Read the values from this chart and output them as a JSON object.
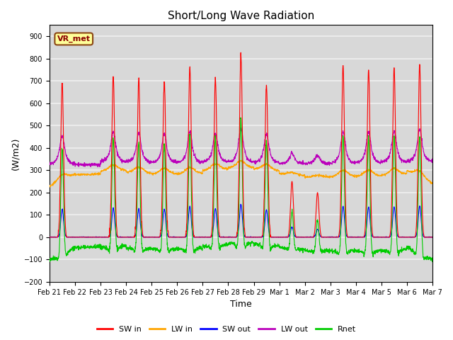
{
  "title": "Short/Long Wave Radiation",
  "xlabel": "Time",
  "ylabel": "(W/m2)",
  "ylim": [
    -200,
    950
  ],
  "yticks": [
    -200,
    -100,
    0,
    100,
    200,
    300,
    400,
    500,
    600,
    700,
    800,
    900
  ],
  "x_tick_labels": [
    "Feb 21",
    "Feb 22",
    "Feb 23",
    "Feb 24",
    "Feb 25",
    "Feb 26",
    "Feb 27",
    "Feb 28",
    "Feb 29",
    "Mar 1",
    "Mar 2",
    "Mar 3",
    "Mar 4",
    "Mar 5",
    "Mar 6",
    "Mar 7"
  ],
  "annotation_text": "VR_met",
  "legend_labels": [
    "SW in",
    "LW in",
    "SW out",
    "LW out",
    "Rnet"
  ],
  "colors": {
    "SW_in": "#ff0000",
    "LW_in": "#ffa500",
    "SW_out": "#0000ff",
    "LW_out": "#bb00bb",
    "Rnet": "#00cc00"
  },
  "plot_bg": "#d8d8d8",
  "fig_bg": "#ffffff",
  "grid_color": "#f0f0f0",
  "n_days": 15,
  "pts_per_day": 144,
  "title_fontsize": 11,
  "tick_fontsize": 7,
  "label_fontsize": 9,
  "sw_peaks": [
    690,
    0,
    725,
    710,
    700,
    760,
    710,
    820,
    690,
    250,
    200,
    770,
    750,
    760,
    775,
    0
  ],
  "lw_in_base": [
    280,
    275,
    295,
    280,
    275,
    275,
    295,
    305,
    295,
    275,
    265,
    265,
    265,
    270,
    295,
    305
  ],
  "lw_out_base": [
    330,
    325,
    340,
    338,
    336,
    336,
    338,
    338,
    336,
    330,
    330,
    332,
    335,
    338,
    342,
    348
  ]
}
